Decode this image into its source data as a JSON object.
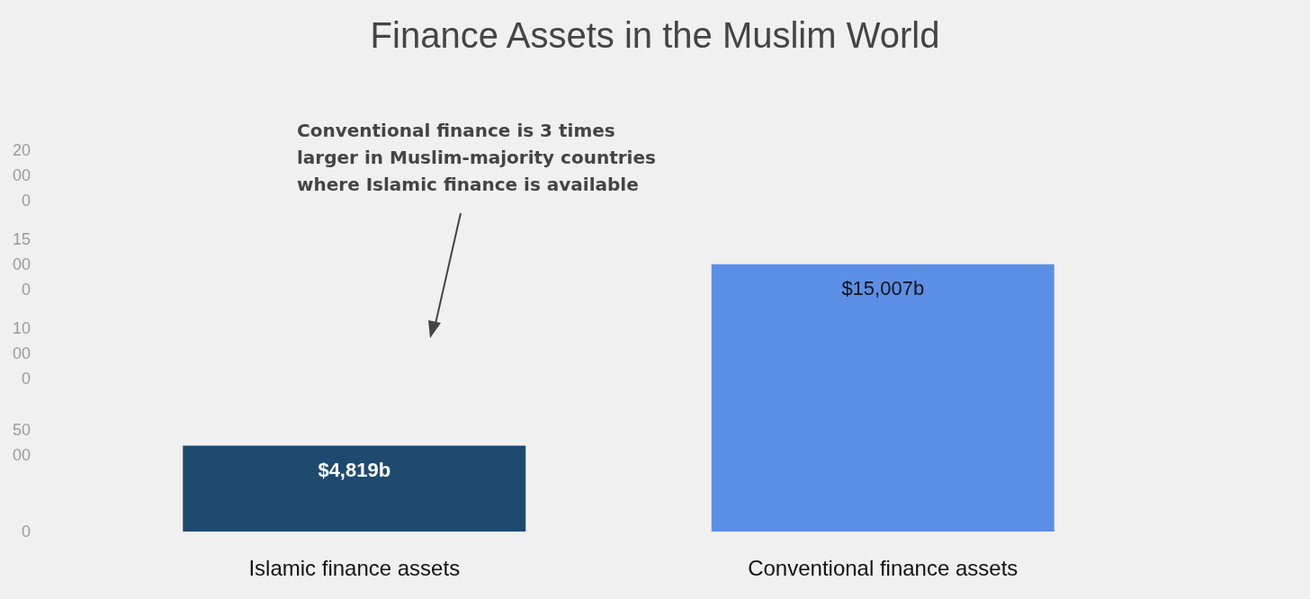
{
  "chart_data": {
    "type": "bar",
    "title": "Finance Assets in the Muslim World",
    "categories": [
      "Islamic finance assets",
      "Conventional finance assets"
    ],
    "values": [
      4819,
      15007
    ],
    "colors": [
      "#1f4a70",
      "#5b8fe6"
    ],
    "value_labels": [
      "$4,819b",
      "$15,007b"
    ],
    "ylim": [
      0,
      20000
    ],
    "yticks": [
      0,
      5000,
      10000,
      15000,
      20000
    ],
    "grid": false,
    "annotations": [
      "Conventional finance is 3 times larger in Muslim-majority countries where Islamic finance is available"
    ]
  }
}
